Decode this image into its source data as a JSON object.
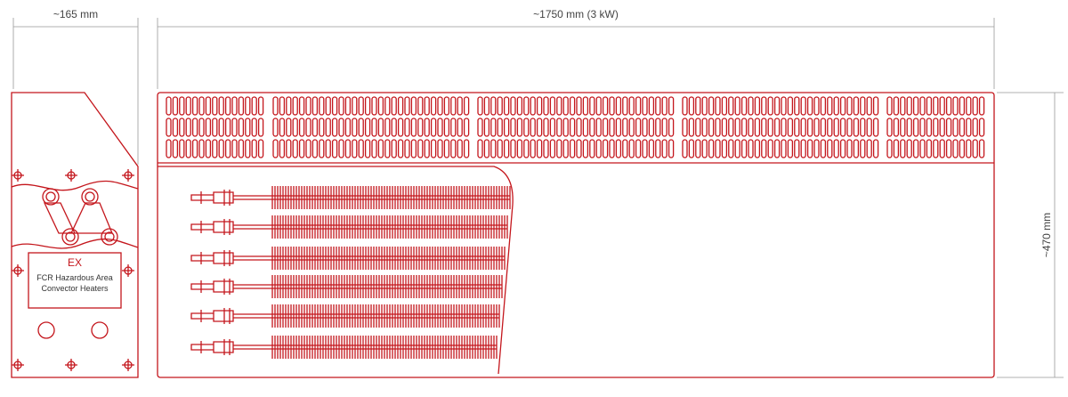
{
  "dimensions": {
    "width": "~165 mm",
    "length": "~1750 mm (3 kW)",
    "height": "~470 mm"
  },
  "label": {
    "mark": "EX",
    "line1": "FCR Hazardous Area",
    "line2": "Convector Heaters"
  }
}
